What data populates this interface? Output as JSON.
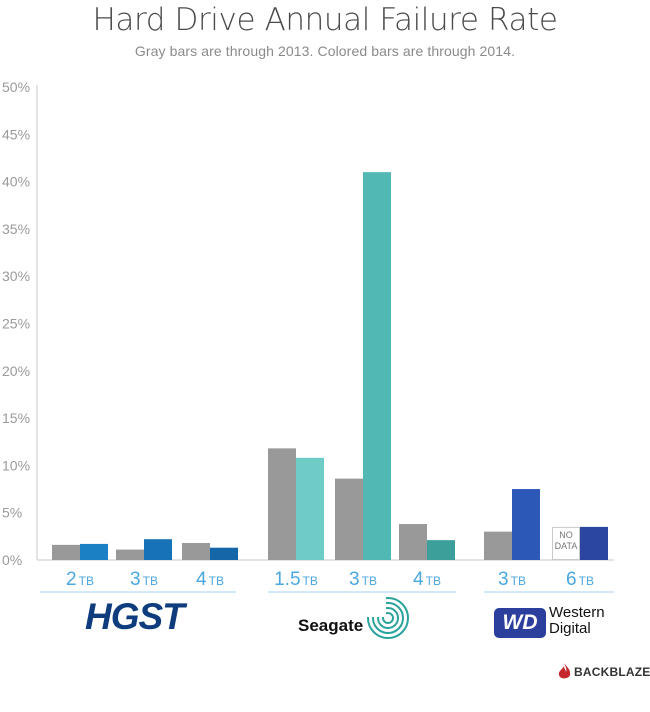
{
  "chart_data": {
    "type": "bar",
    "title": "Hard Drive Annual Failure Rate",
    "subtitle": "Gray bars are through 2013.  Colored bars are through 2014.",
    "xlabel": "",
    "ylabel": "",
    "ylim": [
      0,
      50
    ],
    "yticks": [
      "0%",
      "5%",
      "10%",
      "15%",
      "20%",
      "25%",
      "30%",
      "35%",
      "40%",
      "45%",
      "50%"
    ],
    "grid": false,
    "no_data_label": "NO DATA",
    "groups": [
      {
        "brand": "HGST",
        "bars": [
          {
            "capacity": "2",
            "unit": "TB",
            "through_2013": 1.6,
            "through_2014": 1.7,
            "color": "#1b80c4"
          },
          {
            "capacity": "3",
            "unit": "TB",
            "through_2013": 1.1,
            "through_2014": 2.2,
            "color": "#1772b8"
          },
          {
            "capacity": "4",
            "unit": "TB",
            "through_2013": 1.8,
            "through_2014": 1.3,
            "color": "#1466a8"
          }
        ]
      },
      {
        "brand": "Seagate",
        "bars": [
          {
            "capacity": "1.5",
            "unit": "TB",
            "through_2013": 11.8,
            "through_2014": 10.8,
            "color": "#6fcbc6"
          },
          {
            "capacity": "3",
            "unit": "TB",
            "through_2013": 8.6,
            "through_2014": 41.0,
            "color": "#52b8b4"
          },
          {
            "capacity": "4",
            "unit": "TB",
            "through_2013": 3.8,
            "through_2014": 2.1,
            "color": "#3d9f99"
          }
        ]
      },
      {
        "brand": "Western Digital",
        "bars": [
          {
            "capacity": "3",
            "unit": "TB",
            "through_2013": 3.0,
            "through_2014": 7.5,
            "color": "#2c58b8"
          },
          {
            "capacity": "6",
            "unit": "TB",
            "through_2013": null,
            "through_2014": 3.5,
            "color": "#2a46a0"
          }
        ]
      }
    ],
    "gray_color": "#999999",
    "capacity_color": "#4aa7df"
  },
  "brands": {
    "hgst": "HGST",
    "seagate": "Seagate",
    "wd_badge": "WD",
    "wd_line1": "Western",
    "wd_line2": "Digital"
  },
  "footer": {
    "backblaze": "BACKBLAZE"
  }
}
